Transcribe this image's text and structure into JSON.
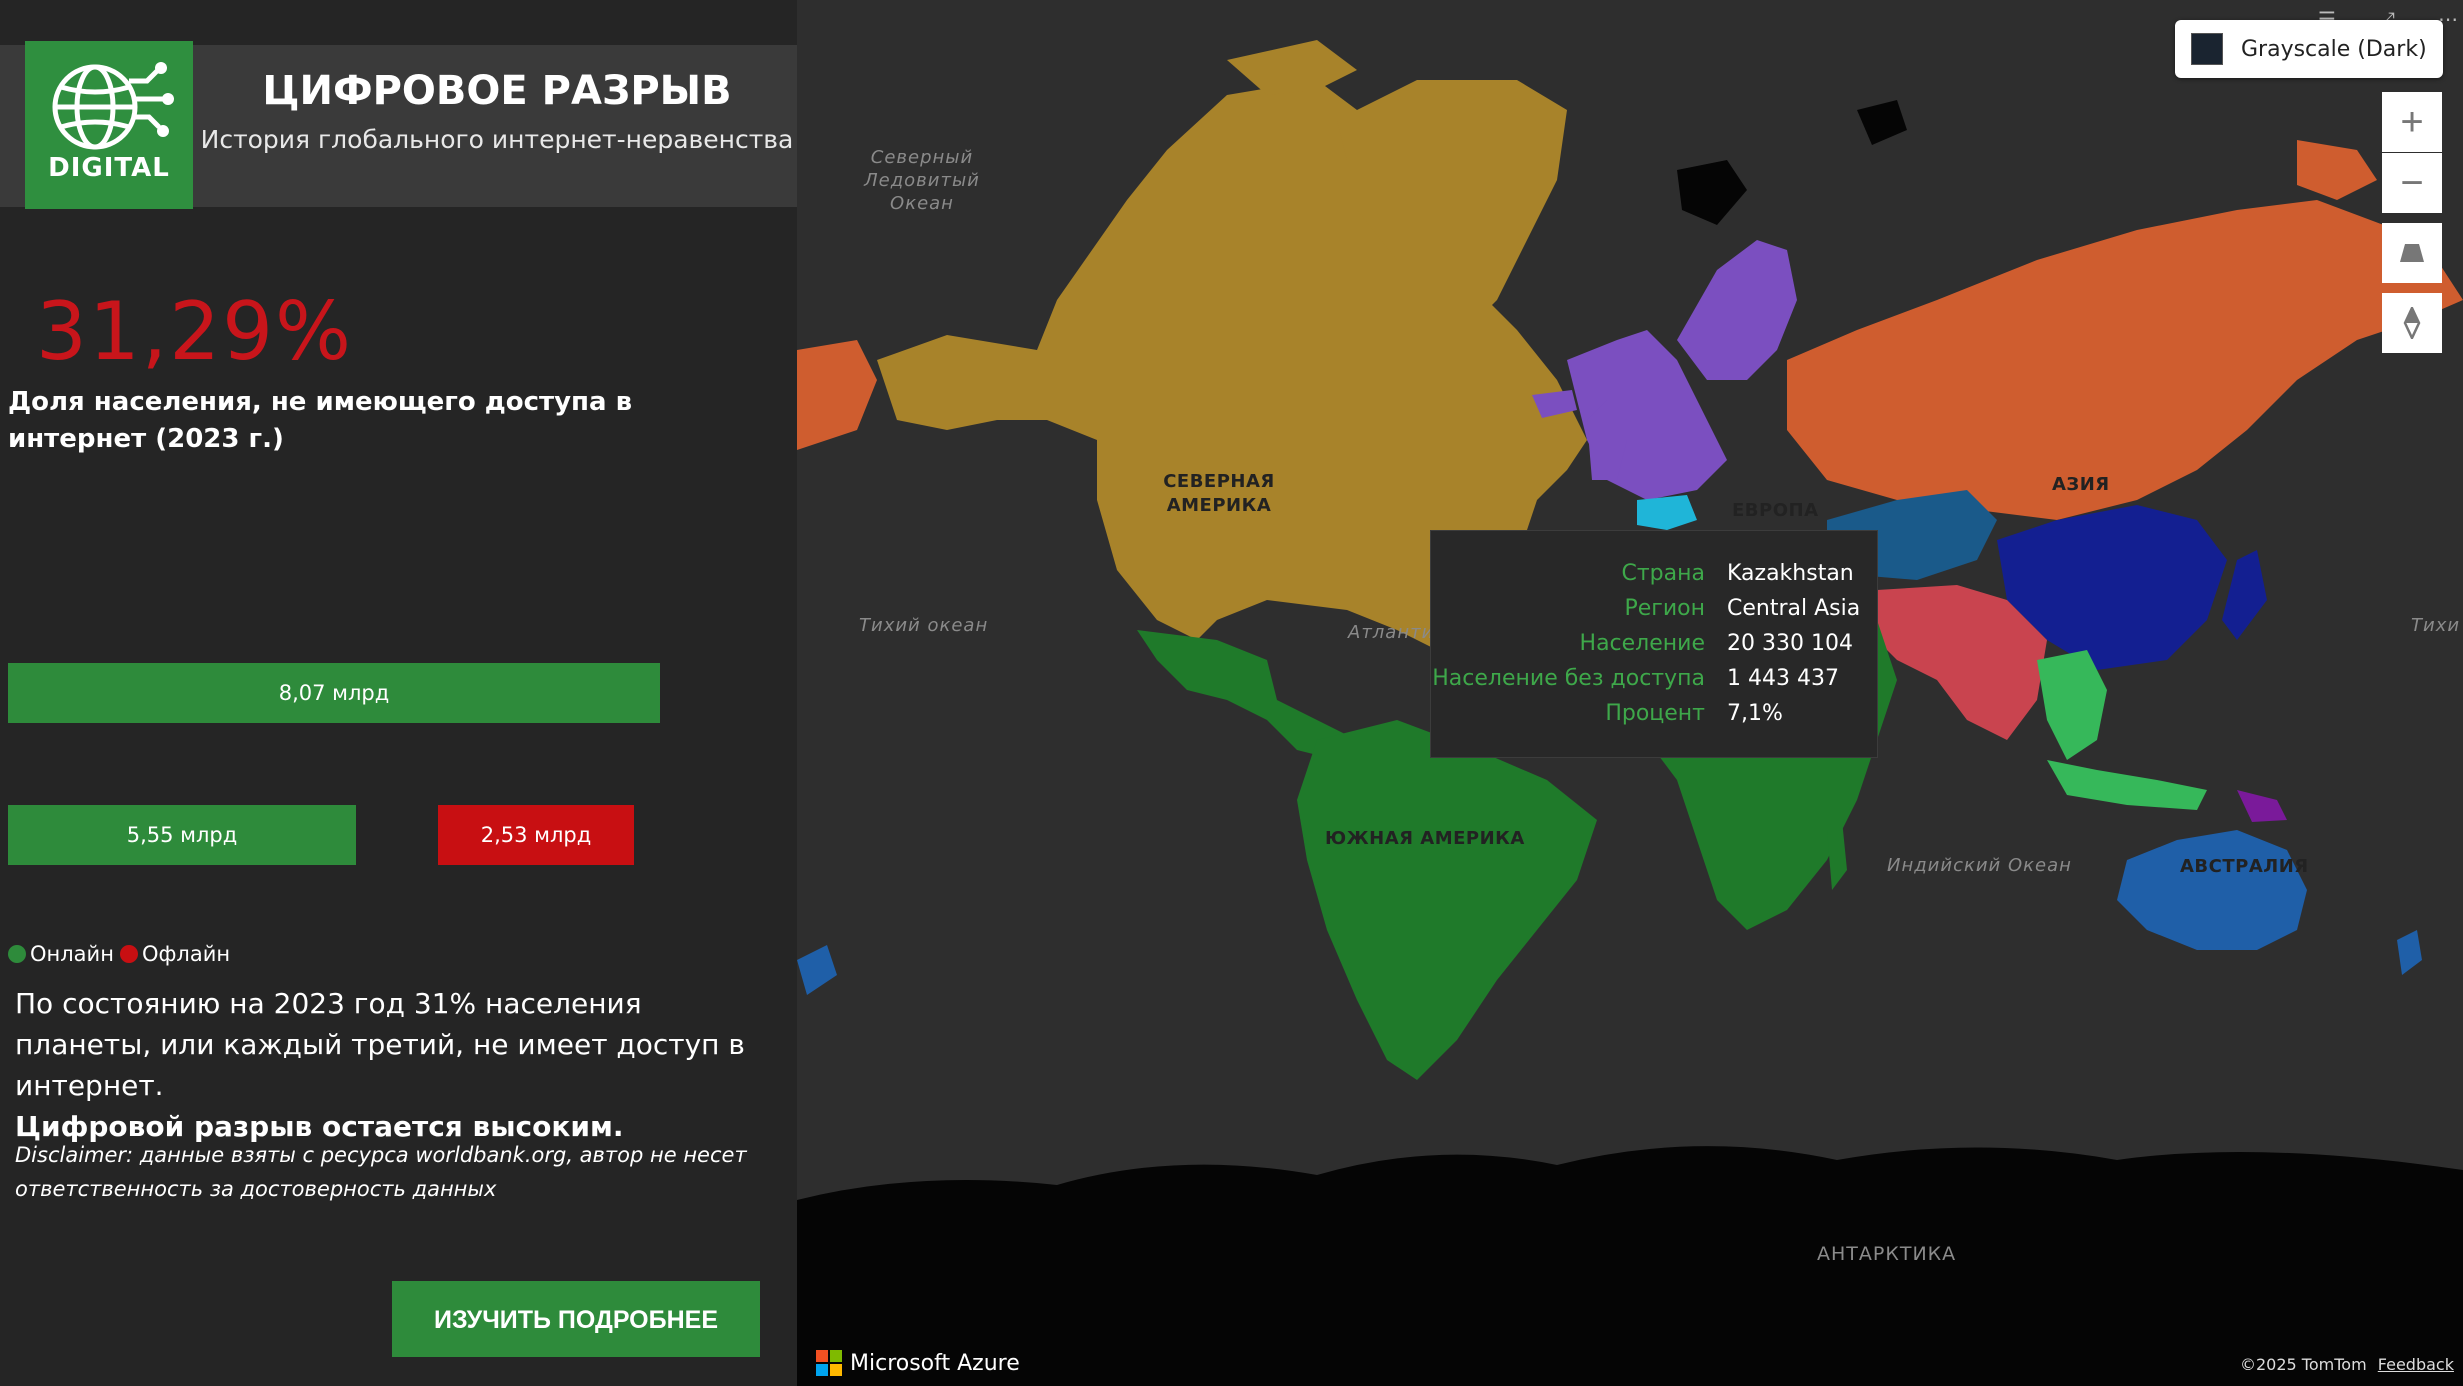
{
  "header": {
    "logo_text": "DIGITAL",
    "title": "ЦИФРОВОЕ РАЗРЫВ",
    "subtitle": "История глобального интернет-неравенства"
  },
  "kpi": {
    "value": "31,29%",
    "caption": "Доля населения, не имеющего доступа в интернет (2023 г.)"
  },
  "bars": {
    "total_label": "8,07 млрд",
    "online_label": "5,55 млрд",
    "offline_label": "2,53 млрд",
    "total_value": 8.07,
    "online_value": 5.55,
    "offline_value": 2.53
  },
  "legend": {
    "online": "Онлайн",
    "offline": "Офлайн",
    "online_color": "#2e8b3b",
    "offline_color": "#c80f12"
  },
  "summary": {
    "text": "По состоянию на 2023 год 31% населения планеты, или каждый третий, не имеет доступ в интернет.",
    "strong": "Цифровой разрыв остается высоким."
  },
  "disclaimer": "Disclaimer: данные взяты с ресурса worldbank.org, автор не несет ответственность за достоверность данных",
  "cta_label": "ИЗУЧИТЬ ПОДРОБНЕЕ",
  "map": {
    "style_label": "Grayscale (Dark)",
    "region_labels": {
      "north_america": "СЕВЕРНАЯ АМЕРИКА",
      "europe": "ЕВРОПА",
      "asia": "АЗИЯ",
      "south_america": "ЮЖНАЯ АМЕРИКА",
      "australia": "АВСТРАЛИЯ",
      "antarctica": "АНТАРКТИКА"
    },
    "ocean_labels": {
      "arctic": "Северный Ледовитый Океан",
      "pacific": "Тихий океан",
      "atlantic": "Атланти",
      "indian": "Индийский Океан",
      "pacific_right": "Тихи"
    },
    "region_colors": {
      "north_america": "#a8832a",
      "europe": "#7b4fc0",
      "asia": "#cf5d2f",
      "south_america": "#1f7a2a",
      "africa": "#1f7a2a",
      "oceania": "#1f5fa8",
      "east_asia": "#131f91",
      "central_asia": "#1a5a8a",
      "south_asia": "#c9444f",
      "southeast_asia": "#36b85a"
    },
    "tooltip": {
      "rows": [
        {
          "label": "Страна",
          "value": "Kazakhstan"
        },
        {
          "label": "Регион",
          "value": "Central Asia"
        },
        {
          "label": "Население",
          "value": "20 330 104"
        },
        {
          "label": "Население без доступа",
          "value": "1 443 437"
        },
        {
          "label": "Процент",
          "value": "7,1%"
        }
      ]
    },
    "brand": "Microsoft Azure",
    "copyright": "©2025 TomTom",
    "feedback": "Feedback"
  }
}
